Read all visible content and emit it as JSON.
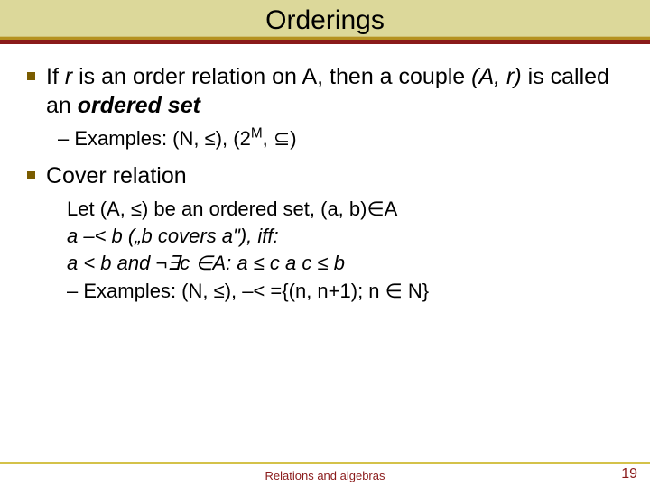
{
  "colors": {
    "title_bg_top": "#dcd89a",
    "title_underline": "#8a1a1a",
    "bullet": "#7a5c00",
    "footer_text": "#8a1a1a",
    "footer_border": "#d4c24a",
    "text": "#000000",
    "background": "#ffffff"
  },
  "typography": {
    "title_fontsize": 30,
    "body_fontsize": 25,
    "sub_fontsize": 22,
    "footer_fontsize": 13,
    "page_fontsize": 16,
    "family": "Arial"
  },
  "title": "Orderings",
  "bullets": [
    {
      "main_pre": "If ",
      "main_ital1": "r",
      "main_mid1": " is an order relation on A, then a couple ",
      "main_ital2": "(A, r)",
      "main_mid2": " is called an ",
      "main_bold": "ordered set",
      "subs": [
        {
          "text": "Examples: (N, ≤), (2",
          "sup": "M",
          "tail": ", ⊆)"
        }
      ]
    },
    {
      "main_plain": "Cover relation",
      "body": [
        "Let (A, ≤) be an ordered set, (a, b)∈A",
        "a –< b  („b covers a\"), iff:",
        "a < b and ¬∃c ∈A: a ≤ c a c ≤ b"
      ],
      "subs": [
        {
          "text": "Examples: (N, ≤),  –< ={(n, n+1); n ∈ N}"
        }
      ]
    }
  ],
  "footer": {
    "center": "Relations and algebras",
    "page": "19"
  }
}
